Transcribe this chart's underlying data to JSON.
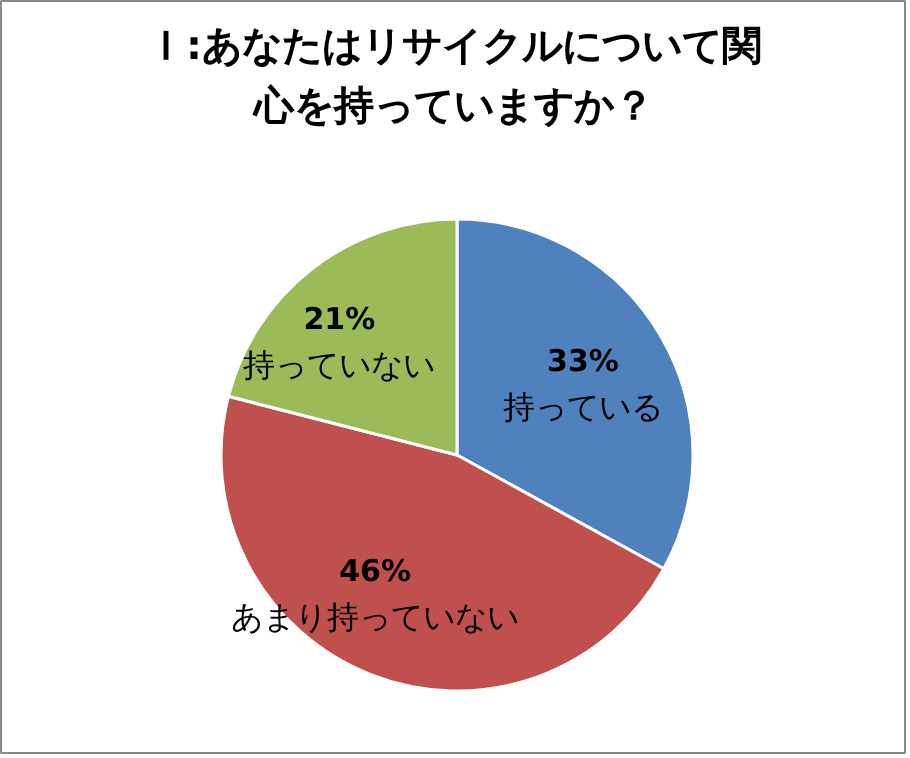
{
  "chart_data": {
    "type": "pie",
    "title": "Ｉ:あなたはリサイクルについて関心を持っていますか？",
    "categories": [
      "持っている",
      "あまり持っていない",
      "持っていない"
    ],
    "values": [
      33,
      46,
      21
    ],
    "colors": [
      "#4f81bd",
      "#c0504d",
      "#9bbb59"
    ],
    "value_labels": [
      "33%",
      "46%",
      "21%"
    ]
  }
}
